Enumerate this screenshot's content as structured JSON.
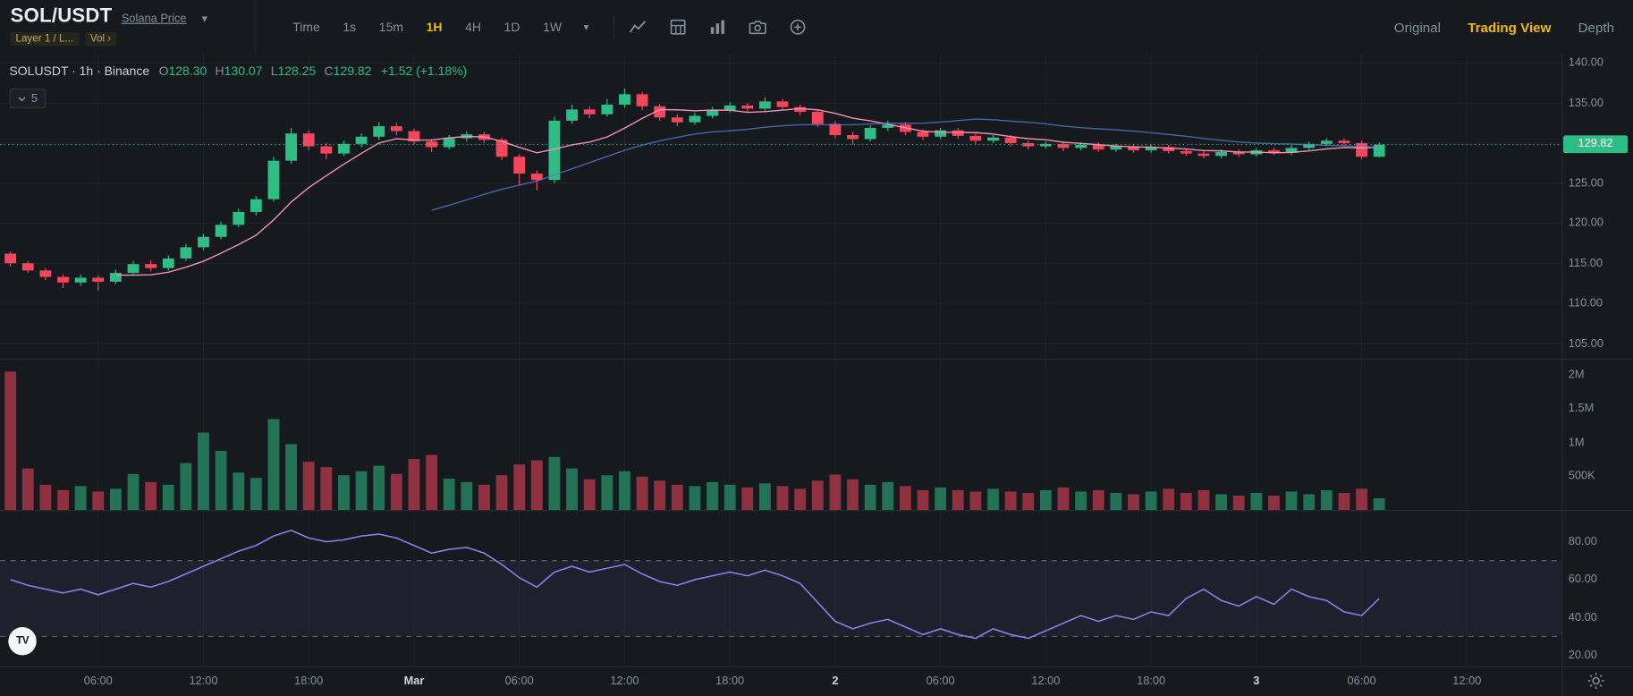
{
  "header": {
    "symbol": "SOL/USDT",
    "symbol_subtitle": "Solana Price",
    "tags": [
      "Layer 1 / L...",
      "Vol ›"
    ],
    "intervals": [
      "Time",
      "1s",
      "15m",
      "1H",
      "4H",
      "1D",
      "1W"
    ],
    "active_interval": "1H",
    "view_tabs": [
      "Original",
      "Trading View",
      "Depth"
    ],
    "active_view_tab": "Trading View"
  },
  "legend": {
    "title": "SOLUSDT · 1h · Binance",
    "items": [
      {
        "k": "O",
        "v": "128.30"
      },
      {
        "k": "H",
        "v": "130.07"
      },
      {
        "k": "L",
        "v": "128.25"
      },
      {
        "k": "C",
        "v": "129.82"
      }
    ],
    "change": "+1.52 (+1.18%)"
  },
  "collapse_chip_count": "5",
  "logo_text": "TV",
  "colors": {
    "up": "#2EBD85",
    "down": "#F6465D",
    "accent": "#F0B90B",
    "text_secondary": "#848E9C",
    "ma_fast": "#F191B5",
    "ma_slow": "#5C7CD6",
    "rsi_line": "#8C7AE6",
    "rsi_band": "rgba(140,122,230,0.07)",
    "level_dashed": "#787B86",
    "grid": "rgba(132,142,156,0.08)",
    "divider": "#262B33",
    "badge_text": "#FFFFFF"
  },
  "chart_data": {
    "type": "candlestick",
    "title": "SOLUSDT 1h Binance with volume and RSI panes",
    "interval": "1h",
    "last_price": 129.82,
    "x_step": 16.85,
    "price_axis": {
      "ticks": [
        140,
        135,
        130,
        125,
        120,
        115,
        110,
        105
      ],
      "ylim": [
        103,
        141.1
      ]
    },
    "volume_axis": {
      "ticks": [
        {
          "value": 2000,
          "label": "2M"
        },
        {
          "value": 1500,
          "label": "1.5M"
        },
        {
          "value": 1000,
          "label": "1M"
        },
        {
          "value": 500,
          "label": "500K"
        }
      ],
      "ylim": [
        0,
        2230
      ],
      "unit": "K"
    },
    "rsi_axis": {
      "ticks": [
        80,
        60,
        40,
        20
      ],
      "ylim": [
        14,
        96.5
      ],
      "levels": [
        70,
        30
      ]
    },
    "ma_periods": [
      7,
      25
    ],
    "time_labels": [
      {
        "i": 5,
        "label": "06:00",
        "major": false
      },
      {
        "i": 11,
        "label": "12:00",
        "major": false
      },
      {
        "i": 17,
        "label": "18:00",
        "major": false
      },
      {
        "i": 23,
        "label": "Mar",
        "major": true
      },
      {
        "i": 29,
        "label": "06:00",
        "major": false
      },
      {
        "i": 35,
        "label": "12:00",
        "major": false
      },
      {
        "i": 41,
        "label": "18:00",
        "major": false
      },
      {
        "i": 47,
        "label": "2",
        "major": true
      },
      {
        "i": 53,
        "label": "06:00",
        "major": false
      },
      {
        "i": 59,
        "label": "12:00",
        "major": false
      },
      {
        "i": 65,
        "label": "18:00",
        "major": false
      },
      {
        "i": 71,
        "label": "3",
        "major": true
      },
      {
        "i": 77,
        "label": "06:00",
        "major": false
      },
      {
        "i": 83,
        "label": "12:00",
        "major": false
      }
    ],
    "candles": [
      [
        116.2,
        116.5,
        114.6,
        115.0
      ],
      [
        115.0,
        115.3,
        113.8,
        114.1
      ],
      [
        114.1,
        114.4,
        112.9,
        113.3
      ],
      [
        113.3,
        113.6,
        111.9,
        112.6
      ],
      [
        112.6,
        113.6,
        112.2,
        113.2
      ],
      [
        113.2,
        113.5,
        111.6,
        112.7
      ],
      [
        112.7,
        114.2,
        112.4,
        113.8
      ],
      [
        113.8,
        115.3,
        113.5,
        114.9
      ],
      [
        114.9,
        115.4,
        114.0,
        114.4
      ],
      [
        114.4,
        116.0,
        114.1,
        115.6
      ],
      [
        115.6,
        117.4,
        115.3,
        117.0
      ],
      [
        117.0,
        118.7,
        116.6,
        118.3
      ],
      [
        118.3,
        120.2,
        118.0,
        119.8
      ],
      [
        119.8,
        121.8,
        119.5,
        121.4
      ],
      [
        121.4,
        123.4,
        121.0,
        123.0
      ],
      [
        123.0,
        128.3,
        122.7,
        127.8
      ],
      [
        127.8,
        131.9,
        127.4,
        131.2
      ],
      [
        131.2,
        131.6,
        129.1,
        129.6
      ],
      [
        129.6,
        130.0,
        128.0,
        128.7
      ],
      [
        128.7,
        130.3,
        128.4,
        129.9
      ],
      [
        129.9,
        131.2,
        129.5,
        130.8
      ],
      [
        130.8,
        132.6,
        130.4,
        132.1
      ],
      [
        132.1,
        132.5,
        131.0,
        131.5
      ],
      [
        131.5,
        131.8,
        129.8,
        130.2
      ],
      [
        130.2,
        130.5,
        128.9,
        129.5
      ],
      [
        129.5,
        131.0,
        129.2,
        130.6
      ],
      [
        130.6,
        131.5,
        130.2,
        131.1
      ],
      [
        131.1,
        131.4,
        130.0,
        130.4
      ],
      [
        130.4,
        130.7,
        127.9,
        128.3
      ],
      [
        128.3,
        128.6,
        124.8,
        126.2
      ],
      [
        126.2,
        126.6,
        124.1,
        125.4
      ],
      [
        125.4,
        133.3,
        125.0,
        132.8
      ],
      [
        132.8,
        134.8,
        132.4,
        134.2
      ],
      [
        134.2,
        134.6,
        133.1,
        133.6
      ],
      [
        133.6,
        135.5,
        133.3,
        134.8
      ],
      [
        134.8,
        136.8,
        134.4,
        136.1
      ],
      [
        136.1,
        136.4,
        134.1,
        134.6
      ],
      [
        134.6,
        134.9,
        132.8,
        133.2
      ],
      [
        133.2,
        133.6,
        132.1,
        132.6
      ],
      [
        132.6,
        133.8,
        132.3,
        133.4
      ],
      [
        133.4,
        134.5,
        133.1,
        134.1
      ],
      [
        134.1,
        135.1,
        133.8,
        134.7
      ],
      [
        134.7,
        135.0,
        133.9,
        134.3
      ],
      [
        134.3,
        135.7,
        134.0,
        135.2
      ],
      [
        135.2,
        135.5,
        134.1,
        134.5
      ],
      [
        134.5,
        134.8,
        133.5,
        133.9
      ],
      [
        133.9,
        134.2,
        132.0,
        132.4
      ],
      [
        132.4,
        132.7,
        130.6,
        131.0
      ],
      [
        131.0,
        131.4,
        129.8,
        130.5
      ],
      [
        130.5,
        132.2,
        130.2,
        131.9
      ],
      [
        131.9,
        132.8,
        131.5,
        132.3
      ],
      [
        132.3,
        132.6,
        131.0,
        131.4
      ],
      [
        131.4,
        131.7,
        130.4,
        130.8
      ],
      [
        130.8,
        131.9,
        130.5,
        131.6
      ],
      [
        131.6,
        131.9,
        130.5,
        130.9
      ],
      [
        130.9,
        131.2,
        129.9,
        130.3
      ],
      [
        130.3,
        131.0,
        130.0,
        130.7
      ],
      [
        130.7,
        131.0,
        129.6,
        130.0
      ],
      [
        130.0,
        130.3,
        129.2,
        129.6
      ],
      [
        129.6,
        130.2,
        129.3,
        129.9
      ],
      [
        129.9,
        130.2,
        129.0,
        129.4
      ],
      [
        129.4,
        130.1,
        129.1,
        129.8
      ],
      [
        129.8,
        130.1,
        128.9,
        129.2
      ],
      [
        129.2,
        129.9,
        128.9,
        129.6
      ],
      [
        129.6,
        129.9,
        128.8,
        129.1
      ],
      [
        129.1,
        129.8,
        128.8,
        129.5
      ],
      [
        129.5,
        129.8,
        128.7,
        129.0
      ],
      [
        129.0,
        129.3,
        128.4,
        128.7
      ],
      [
        128.7,
        129.0,
        128.1,
        128.4
      ],
      [
        128.4,
        129.2,
        128.1,
        128.9
      ],
      [
        128.9,
        129.2,
        128.3,
        128.6
      ],
      [
        128.6,
        129.4,
        128.3,
        129.1
      ],
      [
        129.1,
        129.4,
        128.5,
        128.8
      ],
      [
        128.8,
        129.7,
        128.5,
        129.4
      ],
      [
        129.4,
        130.2,
        129.1,
        129.9
      ],
      [
        129.9,
        130.6,
        129.6,
        130.3
      ],
      [
        130.3,
        130.6,
        129.7,
        130.0
      ],
      [
        130.0,
        130.3,
        128.0,
        128.3
      ],
      [
        128.3,
        130.07,
        128.25,
        129.82
      ]
    ],
    "volumes_k": [
      2050,
      620,
      380,
      300,
      360,
      280,
      320,
      540,
      420,
      380,
      700,
      1150,
      880,
      560,
      480,
      1350,
      980,
      720,
      640,
      520,
      580,
      660,
      540,
      760,
      820,
      470,
      420,
      380,
      520,
      680,
      740,
      790,
      620,
      460,
      520,
      580,
      500,
      440,
      380,
      360,
      420,
      380,
      340,
      400,
      360,
      320,
      440,
      530,
      460,
      380,
      420,
      360,
      300,
      340,
      300,
      280,
      320,
      280,
      260,
      300,
      340,
      280,
      300,
      260,
      240,
      280,
      320,
      260,
      300,
      240,
      220,
      260,
      220,
      280,
      240,
      300,
      260,
      320,
      180
    ],
    "rsi": [
      60,
      57,
      55,
      53,
      55,
      52,
      55,
      58,
      56,
      59,
      63,
      67,
      71,
      75,
      78,
      83,
      86,
      82,
      80,
      81,
      83,
      84,
      82,
      78,
      74,
      76,
      77,
      74,
      68,
      61,
      56,
      64,
      67,
      64,
      66,
      68,
      63,
      59,
      57,
      60,
      62,
      64,
      62,
      65,
      62,
      58,
      48,
      38,
      34,
      37,
      39,
      35,
      31,
      34,
      31,
      29,
      34,
      31,
      29,
      33,
      37,
      41,
      38,
      41,
      39,
      43,
      41,
      50,
      55,
      49,
      46,
      51,
      47,
      55,
      51,
      49,
      43,
      41,
      50
    ]
  }
}
